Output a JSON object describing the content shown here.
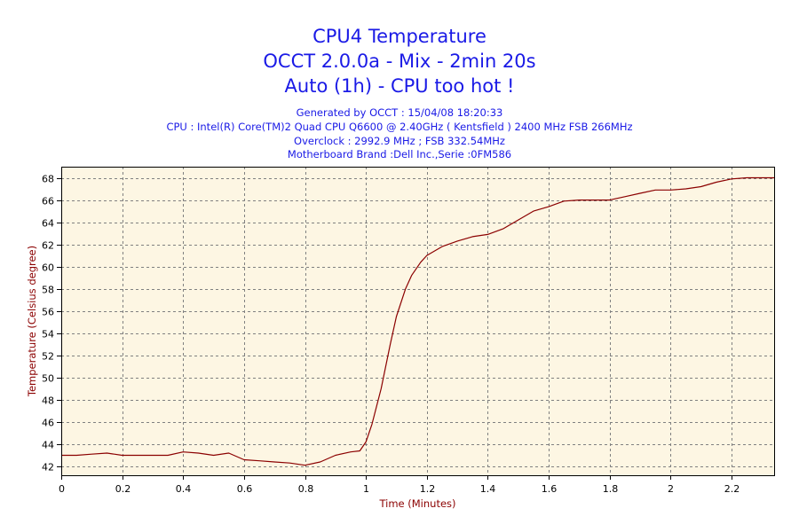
{
  "chart_data": {
    "type": "line",
    "title_lines": [
      "CPU4 Temperature",
      "OCCT 2.0.0a - Mix - 2min 20s",
      "Auto (1h) - CPU too hot !"
    ],
    "subtitle_lines": [
      "Generated by OCCT : 15/04/08 18:20:33",
      "CPU : Intel(R) Core(TM)2 Quad CPU Q6600 @ 2.40GHz ( Kentsfield ) 2400 MHz FSB 266MHz",
      "Overclock : 2992.9 MHz ; FSB 332.54MHz",
      "Motherboard Brand :Dell Inc.,Serie :0FM586"
    ],
    "xlabel": "Time (Minutes)",
    "ylabel": "Temperature (Celsius degree)",
    "xlim": [
      0,
      2.34
    ],
    "ylim": [
      41.2,
      69
    ],
    "xticks": [
      0,
      0.2,
      0.4,
      0.6,
      0.8,
      1,
      1.2,
      1.4,
      1.6,
      1.8,
      2,
      2.2
    ],
    "xtick_labels": [
      "0",
      "0.2",
      "0.4",
      "0.6",
      "0.8",
      "1",
      "1.2",
      "1.4",
      "1.6",
      "1.8",
      "2",
      "2.2"
    ],
    "yticks": [
      42,
      44,
      46,
      48,
      50,
      52,
      54,
      56,
      58,
      60,
      62,
      64,
      66,
      68
    ],
    "ytick_labels": [
      "42",
      "44",
      "46",
      "48",
      "50",
      "52",
      "54",
      "56",
      "58",
      "60",
      "62",
      "64",
      "66",
      "68"
    ],
    "grid": true,
    "series": [
      {
        "color": "#8b0000",
        "x": [
          0,
          0.05,
          0.1,
          0.15,
          0.2,
          0.25,
          0.3,
          0.35,
          0.4,
          0.45,
          0.5,
          0.55,
          0.6,
          0.65,
          0.7,
          0.75,
          0.8,
          0.85,
          0.9,
          0.95,
          0.98,
          1.0,
          1.02,
          1.05,
          1.08,
          1.1,
          1.13,
          1.15,
          1.18,
          1.2,
          1.25,
          1.3,
          1.35,
          1.4,
          1.45,
          1.5,
          1.55,
          1.6,
          1.65,
          1.7,
          1.75,
          1.8,
          1.85,
          1.9,
          1.95,
          2.0,
          2.05,
          2.1,
          2.15,
          2.2,
          2.25,
          2.34
        ],
        "values": [
          43.0,
          43.0,
          43.1,
          43.2,
          43.0,
          43.0,
          43.0,
          43.0,
          43.3,
          43.2,
          43.0,
          43.2,
          42.6,
          42.5,
          42.4,
          42.3,
          42.1,
          42.4,
          43.0,
          43.3,
          43.4,
          44.2,
          45.8,
          49.0,
          53.0,
          55.5,
          58.0,
          59.2,
          60.4,
          61.0,
          61.8,
          62.3,
          62.7,
          62.9,
          63.4,
          64.2,
          65.0,
          65.4,
          65.9,
          66.0,
          66.0,
          66.0,
          66.3,
          66.6,
          66.9,
          66.9,
          67.0,
          67.2,
          67.6,
          67.9,
          68.0,
          68.0
        ]
      }
    ]
  },
  "colors": {
    "title": "#1a1ae6",
    "axis_title": "#8b0000",
    "plot_background": "#fdf6e3",
    "series_line": "#8b0000",
    "grid": "#808080"
  }
}
